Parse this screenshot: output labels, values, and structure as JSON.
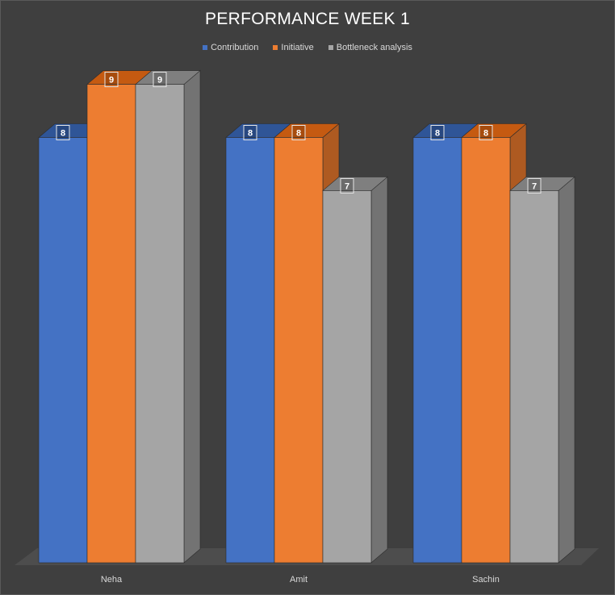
{
  "chart_data": {
    "type": "bar",
    "title": "PERFORMANCE WEEK 1",
    "categories": [
      "Neha",
      "Amit",
      "Sachin"
    ],
    "series": [
      {
        "name": "Contribution",
        "values": [
          8,
          8,
          8
        ],
        "color": "#4472c4",
        "top": "#2f5597",
        "side": "#30528f"
      },
      {
        "name": "Initiative",
        "values": [
          9,
          8,
          8
        ],
        "color": "#ed7d31",
        "top": "#c55a11",
        "side": "#ae5a21"
      },
      {
        "name": "Bottleneck analysis",
        "values": [
          9,
          7,
          7
        ],
        "color": "#a5a5a5",
        "top": "#7f7f7f",
        "side": "#737373"
      }
    ],
    "xlabel": "",
    "ylabel": "",
    "ylim": [
      0,
      9.6
    ],
    "legend_position": "top",
    "grid": false
  }
}
